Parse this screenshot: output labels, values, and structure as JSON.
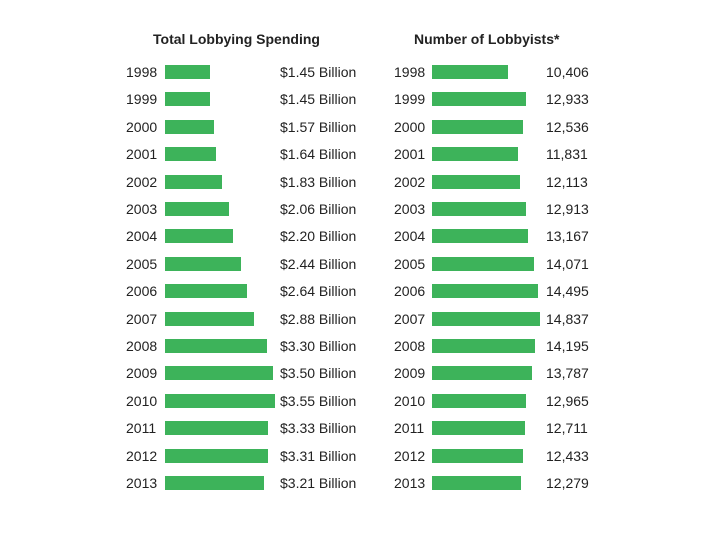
{
  "chart_data": [
    {
      "type": "bar",
      "orientation": "horizontal",
      "title": "Total Lobbying Spending",
      "categories": [
        "1998",
        "1999",
        "2000",
        "2001",
        "2002",
        "2003",
        "2004",
        "2005",
        "2006",
        "2007",
        "2008",
        "2009",
        "2010",
        "2011",
        "2012",
        "2013"
      ],
      "values": [
        1.45,
        1.45,
        1.57,
        1.64,
        1.83,
        2.06,
        2.2,
        2.44,
        2.64,
        2.88,
        3.3,
        3.5,
        3.55,
        3.33,
        3.31,
        3.21
      ],
      "value_labels": [
        "$1.45 Billion",
        "$1.45 Billion",
        "$1.57 Billion",
        "$1.64 Billion",
        "$1.83 Billion",
        "$2.06 Billion",
        "$2.20 Billion",
        "$2.44 Billion",
        "$2.64 Billion",
        "$2.88 Billion",
        "$3.30 Billion",
        "$3.50 Billion",
        "$3.55 Billion",
        "$3.33 Billion",
        "$3.31 Billion",
        "$3.21 Billion"
      ],
      "unit": "Billion USD",
      "color": "#3db35a"
    },
    {
      "type": "bar",
      "orientation": "horizontal",
      "title": "Number of Lobbyists*",
      "categories": [
        "1998",
        "1999",
        "2000",
        "2001",
        "2002",
        "2003",
        "2004",
        "2005",
        "2006",
        "2007",
        "2008",
        "2009",
        "2010",
        "2011",
        "2012",
        "2013"
      ],
      "values": [
        10406,
        12933,
        12536,
        11831,
        12113,
        12913,
        13167,
        14071,
        14495,
        14837,
        14195,
        13787,
        12965,
        12711,
        12433,
        12279
      ],
      "value_labels": [
        "10,406",
        "12,933",
        "12,536",
        "11,831",
        "12,113",
        "12,913",
        "13,167",
        "14,071",
        "14,495",
        "14,837",
        "14,195",
        "13,787",
        "12,965",
        "12,711",
        "12,433",
        "12,279"
      ],
      "color": "#3db35a"
    }
  ]
}
